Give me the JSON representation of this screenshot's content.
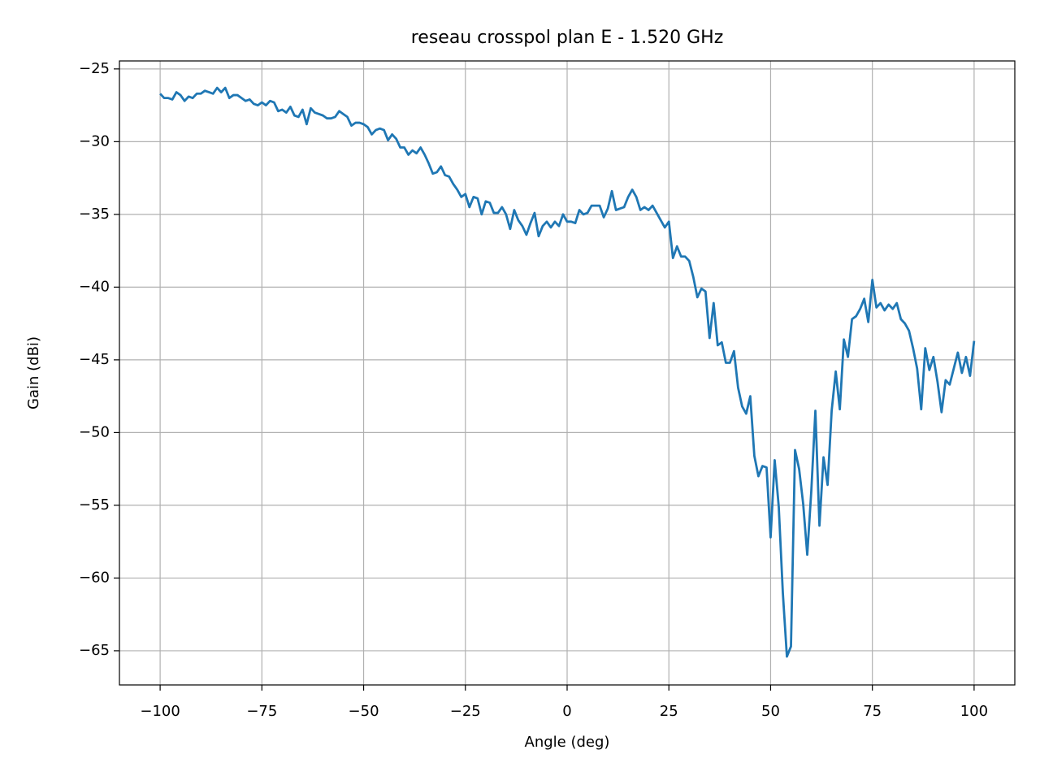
{
  "chart_data": {
    "type": "line",
    "title": "reseau crosspol plan E - 1.520 GHz",
    "x_label": "Angle (deg)",
    "y_label": "Gain (dBi)",
    "color": "#1f77b4",
    "grid": true,
    "xlim": [
      -110,
      110
    ],
    "ylim": [
      -67.35,
      -24.45
    ],
    "xticks": [
      {
        "value": -100,
        "label": "−100"
      },
      {
        "value": -75,
        "label": "−75"
      },
      {
        "value": -50,
        "label": "−50"
      },
      {
        "value": -25,
        "label": "−25"
      },
      0,
      25,
      50,
      75,
      100
    ],
    "yticks": [
      {
        "value": -65,
        "label": "−65"
      },
      {
        "value": -60,
        "label": "−60"
      },
      {
        "value": -55,
        "label": "−55"
      },
      {
        "value": -50,
        "label": "−50"
      },
      {
        "value": -45,
        "label": "−45"
      },
      {
        "value": -40,
        "label": "−40"
      },
      {
        "value": -35,
        "label": "−35"
      },
      {
        "value": -30,
        "label": "−30"
      },
      {
        "value": -25,
        "label": "−25"
      }
    ],
    "x": [
      -100,
      -99,
      -98,
      -97,
      -96,
      -95,
      -94,
      -93,
      -92,
      -91,
      -90,
      -89,
      -88,
      -87,
      -86,
      -85,
      -84,
      -83,
      -82,
      -81,
      -80,
      -79,
      -78,
      -77,
      -76,
      -75,
      -74,
      -73,
      -72,
      -71,
      -70,
      -69,
      -68,
      -67,
      -66,
      -65,
      -64,
      -63,
      -62,
      -61,
      -60,
      -59,
      -58,
      -57,
      -56,
      -55,
      -54,
      -53,
      -52,
      -51,
      -50,
      -49,
      -48,
      -47,
      -46,
      -45,
      -44,
      -43,
      -42,
      -41,
      -40,
      -39,
      -38,
      -37,
      -36,
      -35,
      -34,
      -33,
      -32,
      -31,
      -30,
      -29,
      -28,
      -27,
      -26,
      -25,
      -24,
      -23,
      -22,
      -21,
      -20,
      -19,
      -18,
      -17,
      -16,
      -15,
      -14,
      -13,
      -12,
      -11,
      -10,
      -9,
      -8,
      -7,
      -6,
      -5,
      -4,
      -3,
      -2,
      -1,
      0,
      1,
      2,
      3,
      4,
      5,
      6,
      7,
      8,
      9,
      10,
      11,
      12,
      13,
      14,
      15,
      16,
      17,
      18,
      19,
      20,
      21,
      22,
      23,
      24,
      25,
      26,
      27,
      28,
      29,
      30,
      31,
      32,
      33,
      34,
      35,
      36,
      37,
      38,
      39,
      40,
      41,
      42,
      43,
      44,
      45,
      46,
      47,
      48,
      49,
      50,
      51,
      52,
      53,
      54,
      55,
      56,
      57,
      58,
      59,
      60,
      61,
      62,
      63,
      64,
      65,
      66,
      67,
      68,
      69,
      70,
      71,
      72,
      73,
      74,
      75,
      76,
      77,
      78,
      79,
      80,
      81,
      82,
      83,
      84,
      85,
      86,
      87,
      88,
      89,
      90,
      91,
      92,
      93,
      94,
      95,
      96,
      97,
      98,
      99,
      100
    ],
    "values": [
      -26.7,
      -27.0,
      -27.0,
      -27.1,
      -26.6,
      -26.8,
      -27.2,
      -26.9,
      -27.0,
      -26.7,
      -26.7,
      -26.5,
      -26.6,
      -26.7,
      -26.3,
      -26.6,
      -26.3,
      -27.0,
      -26.8,
      -26.8,
      -27.0,
      -27.2,
      -27.1,
      -27.4,
      -27.5,
      -27.3,
      -27.5,
      -27.2,
      -27.3,
      -27.9,
      -27.8,
      -28.0,
      -27.6,
      -28.2,
      -28.3,
      -27.8,
      -28.8,
      -27.7,
      -28.0,
      -28.1,
      -28.2,
      -28.4,
      -28.4,
      -28.3,
      -27.9,
      -28.1,
      -28.3,
      -28.9,
      -28.7,
      -28.7,
      -28.8,
      -29.0,
      -29.5,
      -29.2,
      -29.1,
      -29.2,
      -29.9,
      -29.5,
      -29.8,
      -30.4,
      -30.4,
      -30.9,
      -30.6,
      -30.8,
      -30.4,
      -30.9,
      -31.5,
      -32.2,
      -32.1,
      -31.7,
      -32.3,
      -32.4,
      -32.9,
      -33.3,
      -33.8,
      -33.6,
      -34.5,
      -33.8,
      -33.9,
      -35.0,
      -34.1,
      -34.2,
      -34.9,
      -34.9,
      -34.5,
      -35.0,
      -36.0,
      -34.7,
      -35.4,
      -35.8,
      -36.4,
      -35.6,
      -34.9,
      -36.5,
      -35.8,
      -35.5,
      -35.9,
      -35.5,
      -35.8,
      -35.0,
      -35.5,
      -35.5,
      -35.6,
      -34.7,
      -35.0,
      -34.9,
      -34.4,
      -34.4,
      -34.4,
      -35.2,
      -34.6,
      -33.4,
      -34.7,
      -34.6,
      -34.5,
      -33.8,
      -33.3,
      -33.8,
      -34.7,
      -34.5,
      -34.7,
      -34.4,
      -34.9,
      -35.4,
      -35.9,
      -35.5,
      -38.0,
      -37.2,
      -37.9,
      -37.9,
      -38.2,
      -39.3,
      -40.7,
      -40.1,
      -40.3,
      -43.5,
      -41.1,
      -44.0,
      -43.8,
      -45.2,
      -45.2,
      -44.4,
      -46.9,
      -48.2,
      -48.7,
      -47.5,
      -51.6,
      -53.0,
      -52.3,
      -52.4,
      -57.2,
      -51.9,
      -55.1,
      -61.0,
      -65.4,
      -64.7,
      -51.2,
      -52.5,
      -54.9,
      -58.4,
      -54.0,
      -48.5,
      -56.4,
      -51.7,
      -53.6,
      -48.5,
      -45.8,
      -48.4,
      -43.6,
      -44.8,
      -42.2,
      -42.0,
      -41.5,
      -40.8,
      -42.4,
      -39.5,
      -41.4,
      -41.1,
      -41.6,
      -41.2,
      -41.5,
      -41.1,
      -42.2,
      -42.5,
      -43.0,
      -44.2,
      -45.6,
      -48.4,
      -44.2,
      -45.7,
      -44.8,
      -46.5,
      -48.6,
      -46.4,
      -46.7,
      -45.6,
      -44.5,
      -45.9,
      -44.8,
      -46.1,
      -43.7
    ]
  }
}
